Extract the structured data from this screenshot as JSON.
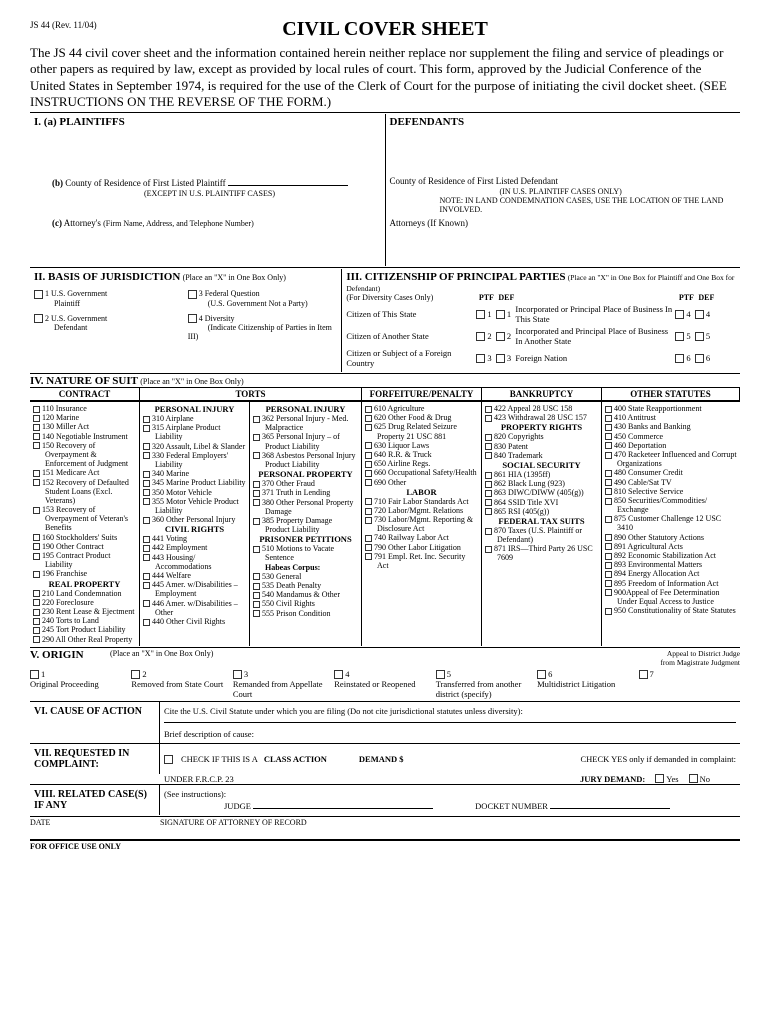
{
  "formRev": "JS 44 (Rev. 11/04)",
  "title": "CIVIL COVER SHEET",
  "intro": "The JS 44 civil cover sheet and the information contained herein neither replace nor supplement the filing and service of pleadings or other papers as required by law, except as provided by local rules of court. This form, approved by the Judicial Conference of the United States in September 1974, is required for the use of the Clerk of Court for the purpose of initiating the civil docket sheet. (SEE INSTRUCTIONS ON THE REVERSE OF THE FORM.)",
  "sec1": {
    "a": "I.   (a)   PLAINTIFFS",
    "defendants": "DEFENDANTS",
    "b": "(b)",
    "bText": "County of Residence of First Listed Plaintiff",
    "bNote": "(EXCEPT IN U.S. PLAINTIFF CASES)",
    "defCounty": "County of Residence of First Listed Defendant",
    "defCountyNote": "(IN U.S. PLAINTIFF CASES ONLY)",
    "landNote": "NOTE:   IN LAND CONDEMNATION CASES, USE THE LOCATION OF THE LAND INVOLVED.",
    "c": "(c)",
    "cText": "Attorney's",
    "cNote": "(Firm Name, Address, and Telephone Number)",
    "defAtty": "Attorneys (If Known)"
  },
  "sec2": {
    "title": "II. BASIS OF JURISDICTION",
    "note": "(Place an \"X\" in One Box Only)",
    "items": [
      {
        "n": "1",
        "l1": "U.S. Government",
        "l2": "Plaintiff"
      },
      {
        "n": "3",
        "l1": "Federal Question",
        "l2": "(U.S. Government Not a Party)"
      },
      {
        "n": "2",
        "l1": "U.S. Government",
        "l2": "Defendant"
      },
      {
        "n": "4",
        "l1": "Diversity",
        "l2": "(Indicate Citizenship of Parties in Item III)"
      }
    ]
  },
  "sec3": {
    "title": "III. CITIZENSHIP OF PRINCIPAL PARTIES",
    "note": "(Place an \"X\" in One Box for Plaintiff and One Box for Defendant)",
    "subNote": "(For Diversity Cases Only)",
    "ptf": "PTF",
    "def": "DEF",
    "rows": [
      {
        "l": "Citizen of This State",
        "n": "1",
        "r": "Incorporated or Principal Place of Business In This State",
        "rn": "4"
      },
      {
        "l": "Citizen of Another State",
        "n": "2",
        "r": "Incorporated and Principal Place of Business In Another State",
        "rn": "5"
      },
      {
        "l": "Citizen or Subject of a Foreign Country",
        "n": "3",
        "r": "Foreign Nation",
        "rn": "6"
      }
    ]
  },
  "sec4": {
    "title": "IV. NATURE OF SUIT",
    "note": "(Place an \"X\" in One Box Only)",
    "headers": [
      "CONTRACT",
      "TORTS",
      "FORFEITURE/PENALTY",
      "BANKRUPTCY",
      "OTHER STATUTES"
    ],
    "contract": [
      "110 Insurance",
      "120 Marine",
      "130 Miller Act",
      "140 Negotiable Instrument",
      "150 Recovery of Overpayment & Enforcement of Judgment",
      "151 Medicare Act",
      "152 Recovery of Defaulted Student Loans (Excl. Veterans)",
      "153 Recovery of Overpayment of Veteran's Benefits",
      "160 Stockholders' Suits",
      "190 Other Contract",
      "195 Contract Product Liability",
      "196 Franchise"
    ],
    "realProp": {
      "hdr": "REAL PROPERTY",
      "items": [
        "210 Land Condemnation",
        "220 Foreclosure",
        "230 Rent Lease & Ejectment",
        "240 Torts to Land",
        "245 Tort Product Liability",
        "290 All Other Real Property"
      ]
    },
    "tortsPI1": {
      "hdr": "PERSONAL INJURY",
      "items": [
        "310 Airplane",
        "315 Airplane Product Liability",
        "320 Assault, Libel & Slander",
        "330 Federal Employers' Liability",
        "340 Marine",
        "345 Marine Product Liability",
        "350 Motor Vehicle",
        "355 Motor Vehicle Product Liability",
        "360 Other Personal Injury"
      ]
    },
    "civilRights": {
      "hdr": "CIVIL RIGHTS",
      "items": [
        "441 Voting",
        "442 Employment",
        "443 Housing/ Accommodations",
        "444 Welfare",
        "445 Amer. w/Disabilities – Employment",
        "446 Amer. w/Disabilities – Other",
        "440 Other Civil Rights"
      ]
    },
    "tortsPI2": {
      "hdr": "PERSONAL INJURY",
      "items": [
        "362 Personal Injury - Med. Malpractice",
        "365 Personal Injury – of Product Liability",
        "368 Asbestos Personal Injury Product Liability"
      ]
    },
    "persProp": {
      "hdr": "PERSONAL PROPERTY",
      "items": [
        "370 Other Fraud",
        "371 Truth in Lending",
        "380 Other Personal Property Damage",
        "385 Property Damage Product Liability"
      ]
    },
    "prisoner": {
      "hdr": "PRISONER PETITIONS",
      "items": [
        "510 Motions to Vacate Sentence"
      ],
      "hc": "Habeas Corpus:",
      "hcItems": [
        "530 General",
        "535 Death Penalty",
        "540 Mandamus & Other",
        "550 Civil Rights",
        "555 Prison Condition"
      ]
    },
    "forfeiture": [
      "610 Agriculture",
      "620 Other Food & Drug",
      "625 Drug Related Seizure Property 21 USC 881",
      "630 Liquor Laws",
      "640 R.R. & Truck",
      "650 Airline Regs.",
      "660 Occupational Safety/Health",
      "690 Other"
    ],
    "labor": {
      "hdr": "LABOR",
      "items": [
        "710 Fair Labor Standards Act",
        "720 Labor/Mgmt. Relations",
        "730 Labor/Mgmt. Reporting & Disclosure Act",
        "740 Railway Labor Act",
        "790 Other Labor Litigation",
        "791 Empl. Ret. Inc. Security Act"
      ]
    },
    "bankruptcy": [
      "422 Appeal 28 USC 158",
      "423 Withdrawal 28 USC 157"
    ],
    "propRights": {
      "hdr": "PROPERTY RIGHTS",
      "items": [
        "820 Copyrights",
        "830 Patent",
        "840 Trademark"
      ]
    },
    "socSec": {
      "hdr": "SOCIAL SECURITY",
      "items": [
        "861 HIA (1395ff)",
        "862 Black Lung (923)",
        "863 DIWC/DIWW (405(g))",
        "864 SSID Title XVI",
        "865 RSI (405(g))"
      ]
    },
    "fedTax": {
      "hdr": "FEDERAL TAX SUITS",
      "items": [
        "870 Taxes (U.S. Plaintiff or Defendant)",
        "871 IRS—Third Party 26 USC 7609"
      ]
    },
    "other": [
      "400 State Reapportionment",
      "410 Antitrust",
      "430 Banks and Banking",
      "450 Commerce",
      "460 Deportation",
      "470 Racketeer Influenced and Corrupt Organizations",
      "480 Consumer Credit",
      "490 Cable/Sat TV",
      "810 Selective Service",
      "850 Securities/Commodities/ Exchange",
      "875 Customer Challenge 12 USC 3410",
      "890 Other Statutory Actions",
      "891 Agricultural Acts",
      "892 Economic Stabilization Act",
      "893 Environmental Matters",
      "894 Energy Allocation Act",
      "895 Freedom of Information Act",
      "900Appeal of Fee Determination Under Equal Access to Justice",
      "950 Constitutionality of State Statutes"
    ]
  },
  "sec5": {
    "title": "V. ORIGIN",
    "note": "(Place an \"X\" in One Box Only)",
    "appeal": "Appeal to District Judge from Magistrate Judgment",
    "items": [
      {
        "n": "1",
        "l": "Original Proceeding"
      },
      {
        "n": "2",
        "l": "Removed from State Court"
      },
      {
        "n": "3",
        "l": "Remanded from Appellate Court"
      },
      {
        "n": "4",
        "l": "Reinstated or Reopened"
      },
      {
        "n": "5",
        "l": "Transferred from another district (specify)"
      },
      {
        "n": "6",
        "l": "Multidistrict Litigation"
      },
      {
        "n": "7",
        "l": ""
      }
    ]
  },
  "sec6": {
    "title": "VI. CAUSE OF ACTION",
    "l1": "Cite the U.S. Civil Statute under which you are filing (Do not cite jurisdictional statutes unless diversity):",
    "l2": "Brief description of cause:"
  },
  "sec7": {
    "title": "VII. REQUESTED IN COMPLAINT:",
    "check": "CHECK IF THIS IS A",
    "classAction": "CLASS ACTION",
    "under": "UNDER F.R.C.P. 23",
    "demand": "DEMAND $",
    "checkYes": "CHECK YES only if demanded in complaint:",
    "jury": "JURY DEMAND:",
    "yes": "Yes",
    "no": "No"
  },
  "sec8": {
    "title": "VIII. RELATED CASE(S) IF ANY",
    "see": "(See instructions):",
    "judge": "JUDGE",
    "docket": "DOCKET NUMBER"
  },
  "footer": {
    "date": "DATE",
    "sig": "SIGNATURE OF ATTORNEY OF RECORD",
    "office": "FOR OFFICE USE ONLY"
  }
}
